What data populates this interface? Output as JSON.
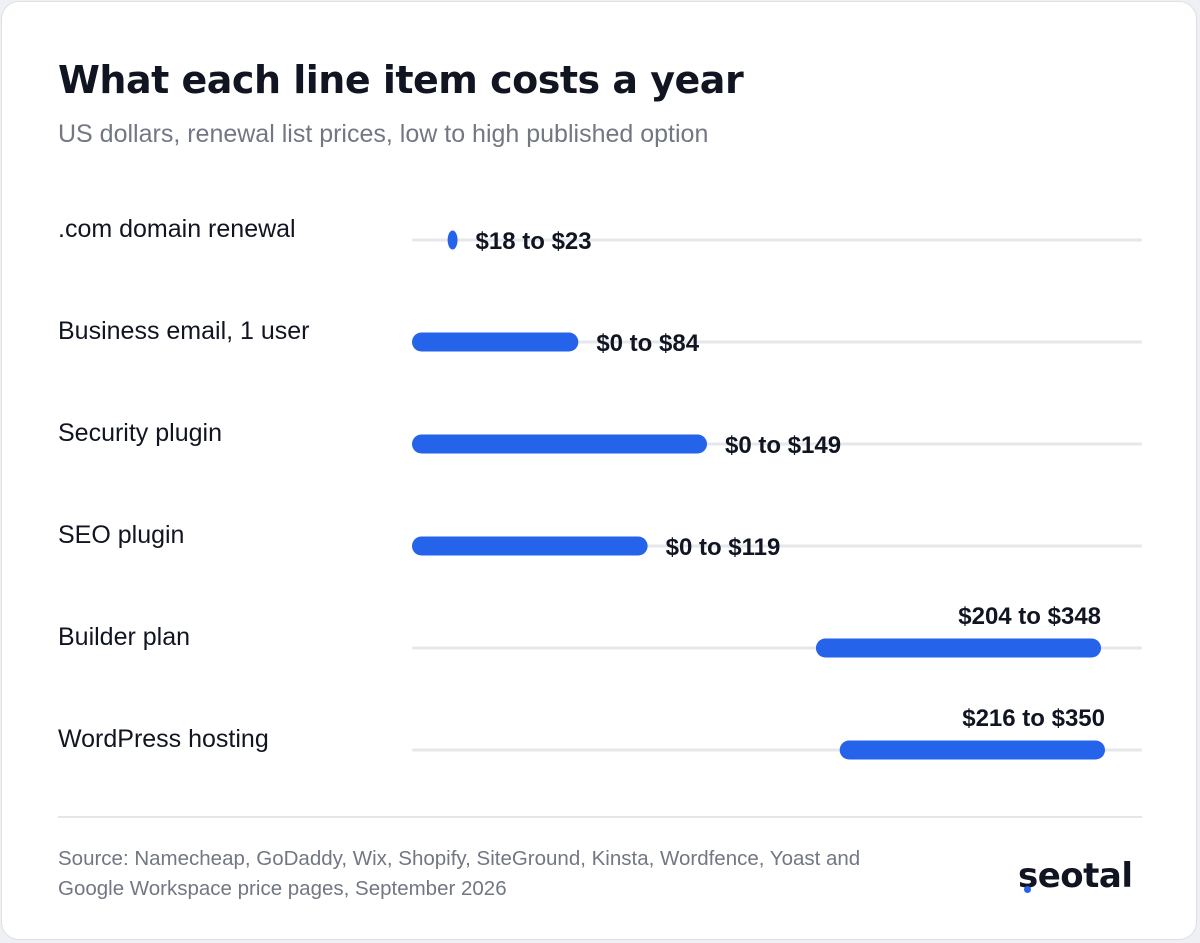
{
  "chart_data": {
    "type": "bar",
    "title": "What each line item costs a year",
    "subtitle": "US dollars, renewal list prices, low to high published option",
    "categories": [
      ".com domain renewal",
      "Business email, 1 user",
      "Security plugin",
      "SEO plugin",
      "Builder plan",
      "WordPress hosting"
    ],
    "series": [
      {
        "ranges": [
          [
            18,
            23
          ],
          [
            0,
            84
          ],
          [
            0,
            149
          ],
          [
            0,
            119
          ],
          [
            204,
            348
          ],
          [
            216,
            350
          ]
        ],
        "labels": [
          "$18 to $23",
          "$0 to $84",
          "$0 to $149",
          "$0 to $119",
          "$204 to $348",
          "$216 to $350"
        ]
      }
    ],
    "xlim": [
      0,
      370
    ],
    "grid": false,
    "legend": "none"
  },
  "colors": {
    "bar": "#2563eb",
    "track": "#e5e7eb",
    "text": "#111522",
    "muted": "#727783"
  },
  "footer": {
    "source": "Source: Namecheap, GoDaddy, Wix, Shopify, SiteGround, Kinsta, Wordfence, Yoast and Google Workspace price pages, September 2026",
    "logo": "seotal"
  }
}
